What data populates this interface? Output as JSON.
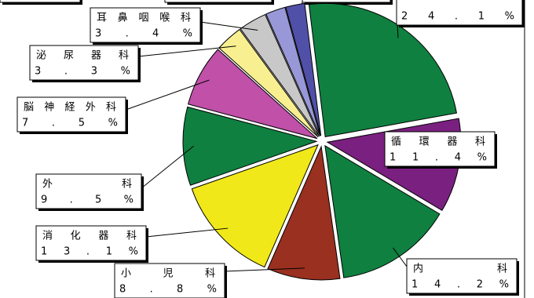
{
  "chart_data": {
    "type": "pie",
    "categories": [
      null,
      "循環器科",
      "内科",
      "小児科",
      "消化器科",
      "外科",
      "脳神経外科",
      "泌尿器科",
      "耳鼻咽喉科",
      null,
      null
    ],
    "values": [
      24.1,
      11.4,
      14.2,
      8.8,
      13.1,
      9.5,
      7.5,
      3.3,
      3.4,
      2.4,
      2.3
    ],
    "value_labels": [
      "24.1%",
      "11.4%",
      "14.2%",
      "8.8%",
      "13.1%",
      "9.5%",
      "7.5%",
      "3.3%",
      "3.4%",
      null,
      null
    ],
    "colors": [
      "#0f8040",
      "#7a2080",
      "#0f8040",
      "#9a3020",
      "#f0e818",
      "#0f8040",
      "#c050a8",
      "#f8f090",
      "#c8c8c8",
      "#9898d8",
      "#5050a8"
    ]
  }
}
